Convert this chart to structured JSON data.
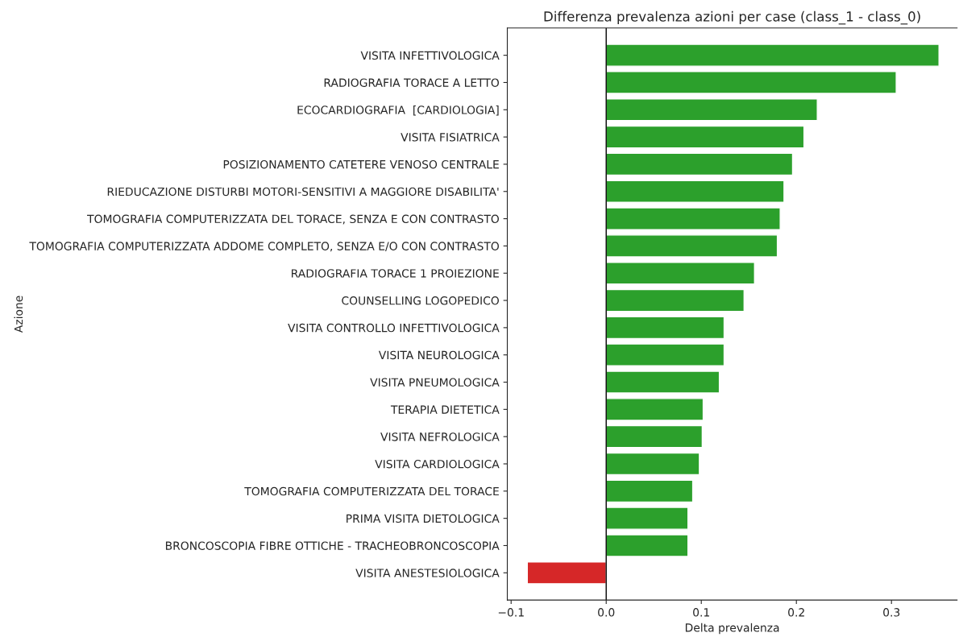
{
  "chart_data": {
    "type": "bar",
    "orientation": "horizontal",
    "title": "Differenza prevalenza azioni per case (class_1 - class_0)",
    "xlabel": "Delta prevalenza",
    "ylabel": "Azione",
    "categories": [
      "VISITA INFETTIVOLOGICA",
      "RADIOGRAFIA TORACE A LETTO",
      "ECOCARDIOGRAFIA  [CARDIOLOGIA]",
      "VISITA FISIATRICA",
      "POSIZIONAMENTO CATETERE VENOSO CENTRALE",
      "RIEDUCAZIONE DISTURBI MOTORI-SENSITIVI A MAGGIORE DISABILITA'",
      "TOMOGRAFIA COMPUTERIZZATA DEL TORACE, SENZA E CON CONTRASTO",
      "TOMOGRAFIA COMPUTERIZZATA ADDOME COMPLETO, SENZA E/O CON CONTRASTO",
      "RADIOGRAFIA TORACE 1 PROIEZIONE",
      "COUNSELLING LOGOPEDICO",
      "VISITA CONTROLLO INFETTIVOLOGICA",
      "VISITA NEUROLOGICA",
      "VISITA PNEUMOLOGICA",
      "TERAPIA DIETETICA",
      "VISITA NEFROLOGICA",
      "VISITA CARDIOLOGICA",
      "TOMOGRAFIA COMPUTERIZZATA DEL TORACE",
      "PRIMA VISITA DIETOLOGICA",
      "BRONCOSCOPIA FIBRE OTTICHE - TRACHEOBRONCOSCOPIA",
      "VISITA ANESTESIOLOGICA"
    ],
    "values": [
      0.35,
      0.305,
      0.222,
      0.208,
      0.196,
      0.187,
      0.183,
      0.18,
      0.156,
      0.145,
      0.124,
      0.124,
      0.119,
      0.102,
      0.101,
      0.098,
      0.091,
      0.086,
      0.086,
      -0.083
    ],
    "colors": [
      "#2ca02c",
      "#2ca02c",
      "#2ca02c",
      "#2ca02c",
      "#2ca02c",
      "#2ca02c",
      "#2ca02c",
      "#2ca02c",
      "#2ca02c",
      "#2ca02c",
      "#2ca02c",
      "#2ca02c",
      "#2ca02c",
      "#2ca02c",
      "#2ca02c",
      "#2ca02c",
      "#2ca02c",
      "#2ca02c",
      "#2ca02c",
      "#d62728"
    ],
    "xlim": [
      -0.104,
      0.369
    ],
    "xticks": [
      {
        "value": -0.1,
        "label": "−0.1"
      },
      {
        "value": 0,
        "label": "0.0"
      },
      {
        "value": 0.1,
        "label": "0.1"
      },
      {
        "value": 0.2,
        "label": "0.2"
      },
      {
        "value": 0.3,
        "label": "0.3"
      }
    ],
    "ref_lines": [
      {
        "axis": "x",
        "value": 0,
        "color": "#000000"
      }
    ],
    "grid": false
  }
}
